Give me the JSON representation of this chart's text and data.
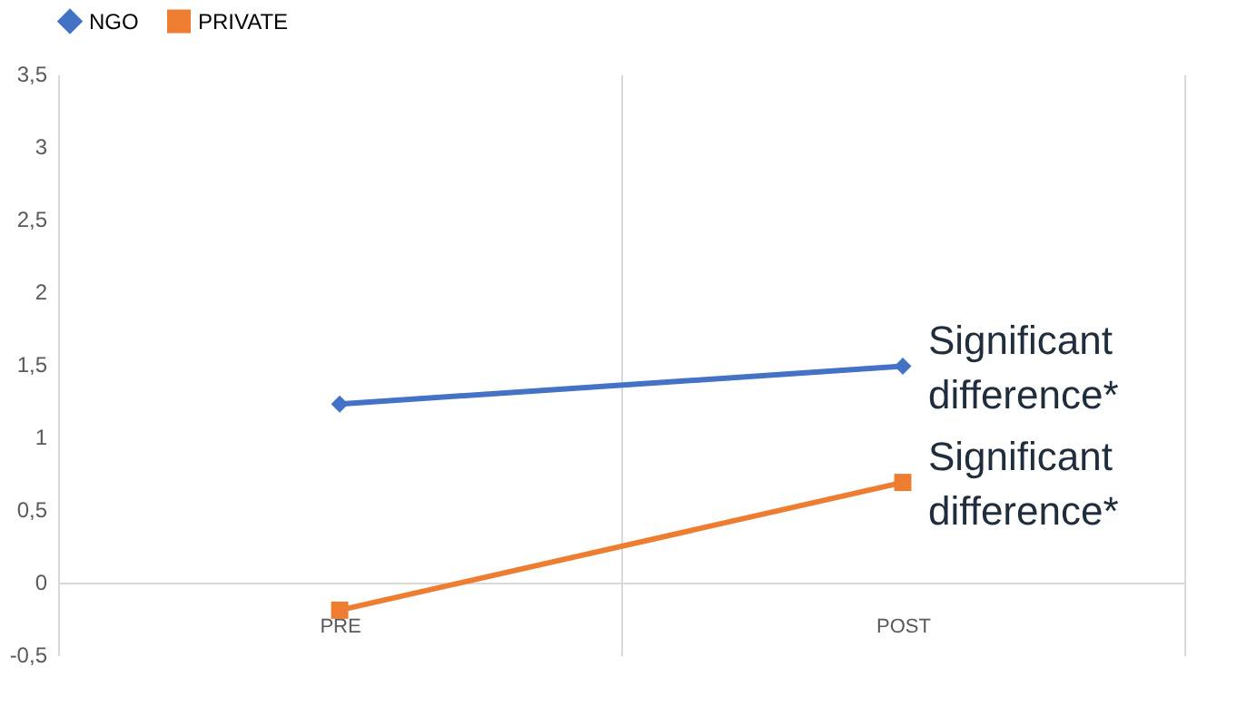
{
  "chart_data": {
    "type": "line",
    "categories": [
      "PRE",
      "POST"
    ],
    "series": [
      {
        "name": "NGO",
        "color": "#4472c4",
        "values": [
          1.23,
          1.49
        ],
        "marker": "diamond"
      },
      {
        "name": "PRIVATE",
        "color": "#ed7d31",
        "values": [
          -0.19,
          0.69
        ],
        "marker": "square"
      }
    ],
    "ylim": [
      -0.5,
      3.5
    ],
    "yticks": [
      {
        "value": -0.5,
        "label": "-0,5"
      },
      0,
      {
        "value": 0.5,
        "label": "0,5"
      },
      1,
      {
        "value": 1.5,
        "label": "1,5"
      },
      2,
      {
        "value": 2.5,
        "label": "2,5"
      },
      3,
      {
        "value": 3.5,
        "label": "3,5"
      }
    ],
    "annotations": [
      {
        "text": "Significant difference*",
        "x": "POST",
        "y": 1.49
      },
      {
        "text": "Significant difference*",
        "x": "POST",
        "y": 0.69
      }
    ],
    "grid": "x",
    "legend": "top",
    "line_style": "solid"
  }
}
